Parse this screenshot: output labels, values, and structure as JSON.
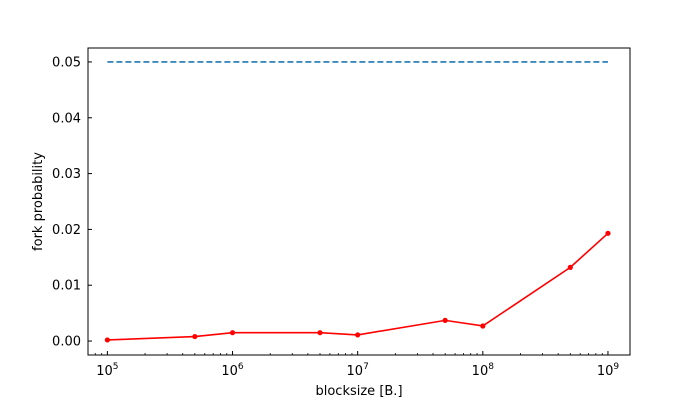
{
  "chart_data": {
    "type": "line",
    "title": "",
    "xlabel": "blocksize [B.]",
    "ylabel": "fork probability",
    "xscale": "log",
    "xlim": [
      70000,
      1500000000
    ],
    "ylim": [
      -0.0025,
      0.0525
    ],
    "grid": false,
    "legend": "none",
    "x_ticks": [
      {
        "value": 100000,
        "base": "10",
        "exp": "5"
      },
      {
        "value": 1000000,
        "base": "10",
        "exp": "6"
      },
      {
        "value": 10000000,
        "base": "10",
        "exp": "7"
      },
      {
        "value": 100000000,
        "base": "10",
        "exp": "8"
      },
      {
        "value": 1000000000,
        "base": "10",
        "exp": "9"
      }
    ],
    "y_ticks": [
      {
        "value": 0.0,
        "label": "0.00"
      },
      {
        "value": 0.01,
        "label": "0.01"
      },
      {
        "value": 0.02,
        "label": "0.02"
      },
      {
        "value": 0.03,
        "label": "0.03"
      },
      {
        "value": 0.04,
        "label": "0.04"
      },
      {
        "value": 0.05,
        "label": "0.05"
      }
    ],
    "series": [
      {
        "style": "dashed",
        "color": "#1f77b4",
        "marker": "none",
        "x": [
          100000,
          1000000000
        ],
        "y": [
          0.05,
          0.05
        ]
      },
      {
        "style": "solid",
        "color": "#ff0000",
        "marker": "dot",
        "x": [
          100000,
          500000,
          1000000,
          5000000,
          10000000,
          50000000,
          100000000,
          500000000,
          1000000000
        ],
        "y": [
          0.0002,
          0.0008,
          0.0015,
          0.0015,
          0.0011,
          0.0037,
          0.0027,
          0.0132,
          0.0193
        ]
      }
    ]
  }
}
